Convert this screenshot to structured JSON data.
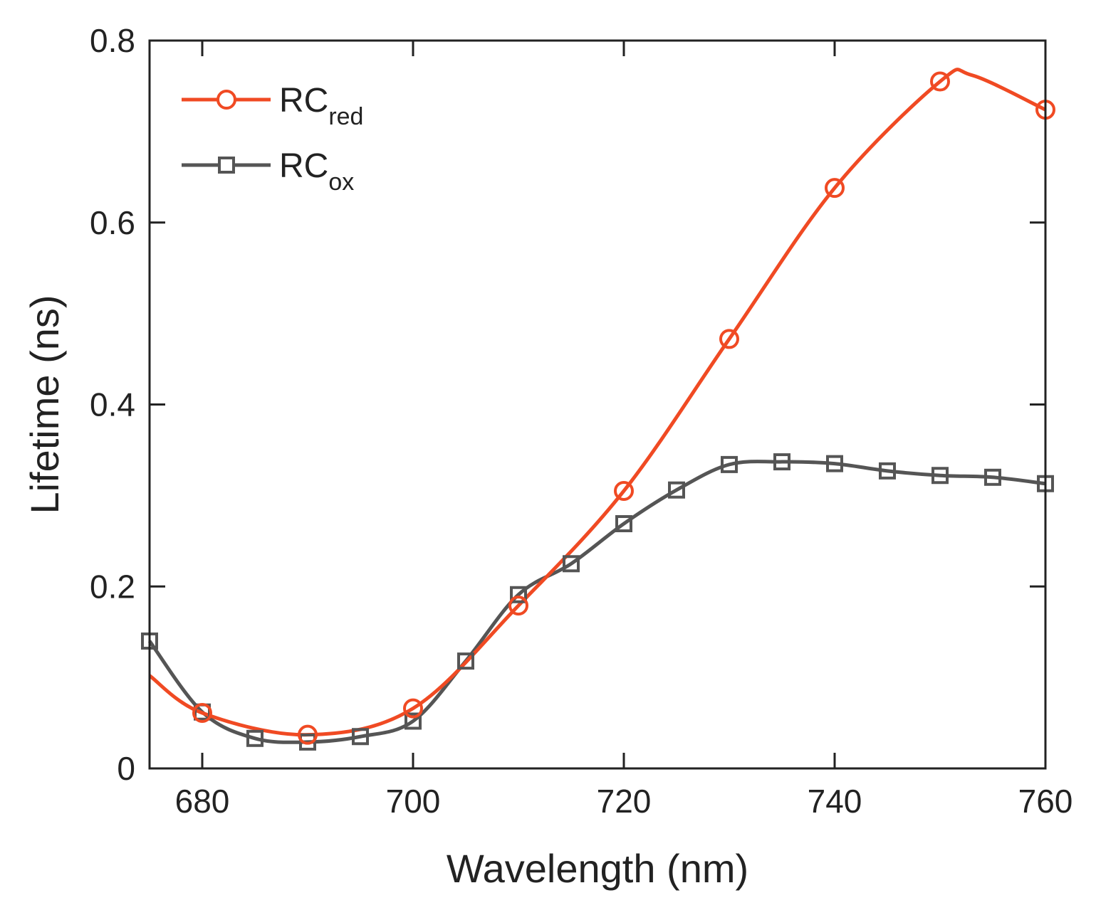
{
  "chart_data": {
    "type": "line",
    "title": "",
    "xlabel": "Wavelength (nm)",
    "ylabel": "Lifetime (ns)",
    "xlim": [
      675,
      760
    ],
    "ylim": [
      0,
      0.8
    ],
    "xticks": [
      680,
      700,
      720,
      740,
      760
    ],
    "yticks": [
      0,
      0.2,
      0.4,
      0.6,
      0.8
    ],
    "xtick_labels": [
      "680",
      "700",
      "720",
      "740",
      "760"
    ],
    "ytick_labels": [
      "0",
      "0.2",
      "0.4",
      "0.6",
      "0.8"
    ],
    "legend_position": "top-left",
    "series": [
      {
        "name": "RCred",
        "legend_main": "RC",
        "legend_sub": "red",
        "color": "#f04a23",
        "marker": "circle",
        "x": [
          680,
          690,
          700,
          710,
          720,
          730,
          740,
          750,
          760
        ],
        "values": [
          0.061,
          0.037,
          0.066,
          0.179,
          0.305,
          0.472,
          0.638,
          0.755,
          0.724
        ],
        "curve_extra": [
          {
            "x": 675,
            "y": 0.102
          },
          {
            "x": 753,
            "y": 0.762
          }
        ]
      },
      {
        "name": "RCox",
        "legend_main": "RC",
        "legend_sub": "ox",
        "color": "#555555",
        "marker": "square",
        "x": [
          675,
          680,
          685,
          690,
          695,
          700,
          705,
          710,
          715,
          720,
          725,
          730,
          735,
          740,
          745,
          750,
          755,
          760
        ],
        "values": [
          0.14,
          0.062,
          0.033,
          0.029,
          0.035,
          0.052,
          0.118,
          0.191,
          0.225,
          0.269,
          0.306,
          0.334,
          0.337,
          0.335,
          0.327,
          0.322,
          0.32,
          0.313
        ]
      }
    ]
  }
}
